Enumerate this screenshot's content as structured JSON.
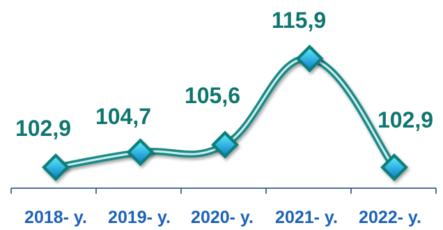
{
  "chart_data": {
    "type": "line",
    "categories": [
      "2018- y.",
      "2019- y.",
      "2020- y.",
      "2021- y.",
      "2022- y."
    ],
    "values": [
      102.9,
      104.7,
      105.6,
      115.9,
      102.9
    ],
    "value_labels": [
      "102,9",
      "104,7",
      "105,6",
      "115,9",
      "102,9"
    ],
    "title": "",
    "xlabel": "",
    "ylabel": "",
    "grid": false,
    "line_style": "smooth",
    "marker": "diamond"
  },
  "colors": {
    "line": "#1a8a86",
    "line_highlight": "#cfeeee",
    "marker_fill_top": "#59e6f8",
    "marker_fill_bottom": "#1184cc",
    "marker_border": "#0f7f7a",
    "data_label": "#0f766f",
    "tick_label": "#1d62b8",
    "axis": "#1a3f80"
  }
}
